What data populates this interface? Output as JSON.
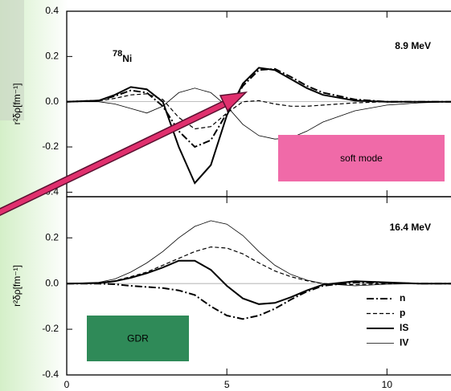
{
  "chart_data": [
    {
      "type": "line",
      "title": "8.9 MeV",
      "nucleus": {
        "mass": "78",
        "symbol": "Ni"
      },
      "ylabel": "r²δρ[fm⁻¹]",
      "annotation": {
        "text": "soft mode",
        "color": "#f06aa8"
      },
      "x": [
        0,
        1,
        1.5,
        2,
        2.5,
        3,
        3.5,
        4,
        4.5,
        5,
        5.5,
        6,
        6.5,
        7,
        7.5,
        8,
        9,
        10,
        11,
        12
      ],
      "series": [
        {
          "color": "#000000",
          "style": "dash-dot",
          "values": [
            0,
            0.005,
            0.025,
            0.05,
            0.04,
            -0.02,
            -0.13,
            -0.2,
            -0.17,
            -0.05,
            0.07,
            0.14,
            0.145,
            0.11,
            0.07,
            0.04,
            0.01,
            0,
            0,
            0
          ]
        },
        {
          "color": "#000000",
          "style": "dash",
          "values": [
            0,
            0.003,
            0.015,
            0.03,
            0.035,
            0.01,
            -0.07,
            -0.12,
            -0.11,
            -0.05,
            0,
            0.005,
            -0.01,
            -0.02,
            -0.02,
            -0.015,
            -0.005,
            0,
            0,
            0
          ]
        },
        {
          "color": "#000000",
          "style": "solid",
          "values": [
            0,
            0.005,
            0.03,
            0.065,
            0.055,
            0,
            -0.2,
            -0.36,
            -0.28,
            -0.06,
            0.08,
            0.15,
            0.14,
            0.1,
            0.06,
            0.03,
            0.005,
            0,
            0,
            0
          ]
        },
        {
          "color": "#000000",
          "style": "thin",
          "values": [
            0,
            0,
            -0.01,
            -0.03,
            -0.05,
            -0.02,
            0.04,
            0.06,
            0.04,
            -0.02,
            -0.1,
            -0.15,
            -0.165,
            -0.16,
            -0.13,
            -0.09,
            -0.04,
            -0.015,
            -0.005,
            0
          ]
        }
      ],
      "xlim": [
        0,
        12
      ],
      "xticks": [
        0,
        5,
        10
      ],
      "xtick_labels": false,
      "ylim": [
        -0.42,
        0.4
      ],
      "yticks": [
        0.4,
        0.2,
        {
          "value": 0,
          "label": "0.0"
        },
        -0.2,
        -0.4
      ]
    },
    {
      "type": "line",
      "title": "16.4 MeV",
      "ylabel": "r²δρ[fm⁻¹]",
      "annotation": {
        "text": "GDR",
        "color": "#2f8a58"
      },
      "x": [
        0,
        1,
        1.5,
        2,
        2.5,
        3,
        3.5,
        4,
        4.5,
        5,
        5.5,
        6,
        6.5,
        7,
        7.5,
        8,
        9,
        10,
        11,
        12
      ],
      "series": [
        {
          "name": "n",
          "color": "#000000",
          "style": "dash-dot",
          "values": [
            0,
            0,
            -0.003,
            -0.01,
            -0.015,
            -0.02,
            -0.03,
            -0.05,
            -0.1,
            -0.14,
            -0.155,
            -0.14,
            -0.11,
            -0.07,
            -0.035,
            -0.01,
            0.005,
            0.003,
            0,
            0
          ]
        },
        {
          "name": "p",
          "color": "#000000",
          "style": "dash",
          "values": [
            0,
            0.003,
            0.012,
            0.03,
            0.05,
            0.08,
            0.11,
            0.14,
            0.16,
            0.155,
            0.13,
            0.09,
            0.055,
            0.03,
            0.012,
            0,
            -0.005,
            0,
            0,
            0
          ]
        },
        {
          "name": "IS",
          "color": "#000000",
          "style": "solid",
          "values": [
            0,
            0.002,
            0.01,
            0.025,
            0.045,
            0.07,
            0.1,
            0.1,
            0.06,
            -0.01,
            -0.065,
            -0.09,
            -0.085,
            -0.06,
            -0.03,
            -0.005,
            0.01,
            0.005,
            0,
            0
          ]
        },
        {
          "name": "IV",
          "color": "#000000",
          "style": "thin",
          "values": [
            0,
            0.005,
            0.02,
            0.05,
            0.09,
            0.14,
            0.2,
            0.25,
            0.275,
            0.26,
            0.21,
            0.14,
            0.08,
            0.04,
            0.015,
            0,
            -0.01,
            -0.003,
            0,
            0
          ]
        }
      ],
      "xlim": [
        0,
        12
      ],
      "xticks": [
        0,
        5,
        10
      ],
      "xtick_labels": true,
      "ylim": [
        -0.4,
        0.38
      ],
      "yticks": [
        0.2,
        {
          "value": 0,
          "label": "0.0"
        },
        -0.2,
        -0.4
      ]
    }
  ]
}
